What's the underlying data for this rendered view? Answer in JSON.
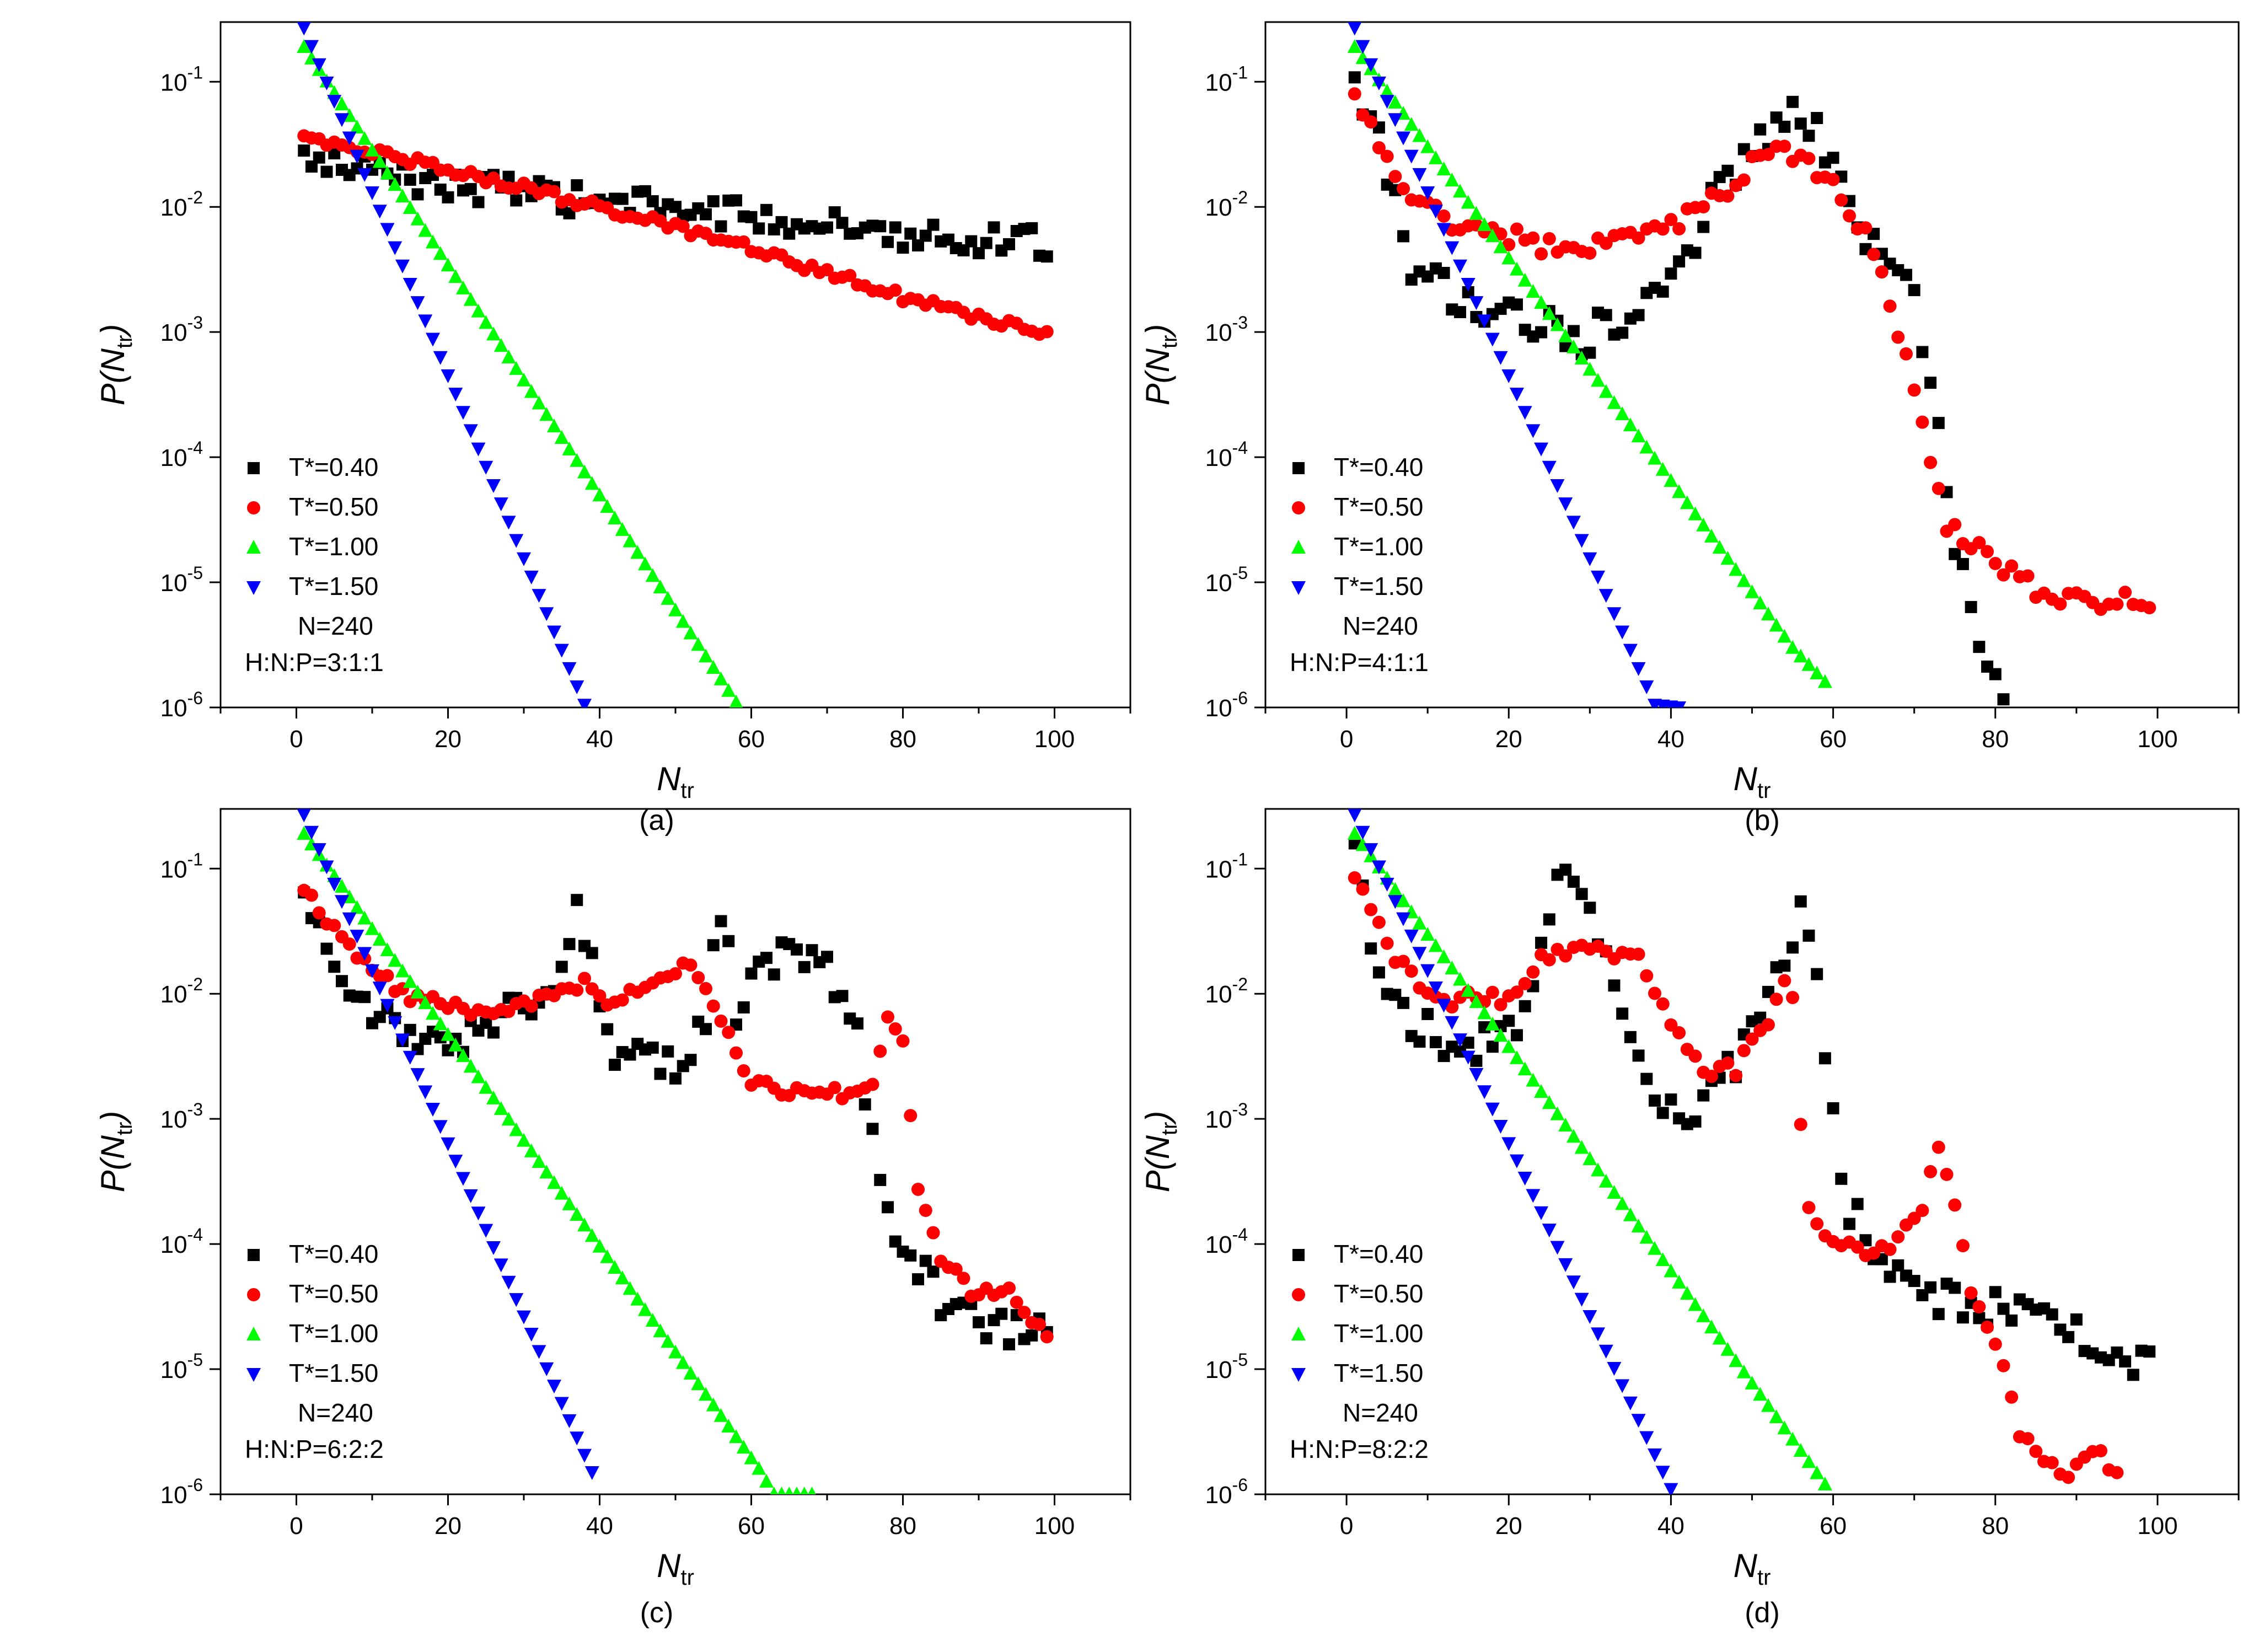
{
  "colors": {
    "t040": "#000000",
    "t050": "#ff0000",
    "t100": "#00ff00",
    "t150": "#0000ff"
  },
  "chart_data": [
    {
      "type": "scatter",
      "panel": "(a)",
      "xlabel": "N",
      "xlabel_sub": "tr",
      "ylabel_pre": "P(N",
      "ylabel_sub": "tr",
      "ylabel_post": ")",
      "xlim": [
        -10,
        110
      ],
      "ylim": [
        1e-06,
        0.3
      ],
      "yscale": "log",
      "xticks": [
        0,
        20,
        40,
        60,
        80,
        100
      ],
      "yticks": [
        {
          "exp": -1,
          "value": 0.1
        },
        {
          "exp": -2,
          "value": 0.01
        },
        {
          "exp": -3,
          "value": 0.001
        },
        {
          "exp": -4,
          "value": 0.0001
        },
        {
          "exp": -5,
          "value": 1e-05
        },
        {
          "exp": -6,
          "value": 1e-06
        }
      ],
      "notes": [
        "N=240",
        "H:N:P=3:1:1"
      ],
      "series": [
        {
          "name": "T*=0.40",
          "color": "#000000",
          "marker": "square",
          "anchors": [
            [
              1,
              0.024
            ],
            [
              20,
              0.015
            ],
            [
              40,
              0.011
            ],
            [
              60,
              0.0085
            ],
            [
              80,
              0.0062
            ],
            [
              99,
              0.0051
            ]
          ],
          "noise": 0.12,
          "xstep": 1
        },
        {
          "name": "T*=0.50",
          "color": "#ff0000",
          "marker": "circle",
          "anchors": [
            [
              1,
              0.037
            ],
            [
              20,
              0.02
            ],
            [
              40,
              0.01
            ],
            [
              60,
              0.0046
            ],
            [
              80,
              0.0019
            ],
            [
              99,
              0.00095
            ]
          ],
          "noise": 0.04,
          "xstep": 1
        },
        {
          "name": "T*=1.00",
          "color": "#00ff00",
          "marker": "triangle-up",
          "anchors": [
            [
              1,
              0.19
            ],
            [
              58,
              1.1e-06
            ]
          ],
          "noise": 0,
          "xstep": 1
        },
        {
          "name": "T*=1.50",
          "color": "#0000ff",
          "marker": "triangle-down",
          "anchors": [
            [
              1,
              0.27
            ],
            [
              38,
              1.05e-06
            ]
          ],
          "noise": 0,
          "xstep": 1
        }
      ]
    },
    {
      "type": "scatter",
      "panel": "(b)",
      "xlabel": "N",
      "xlabel_sub": "tr",
      "ylabel_pre": "P(N",
      "ylabel_sub": "tr",
      "ylabel_post": ")",
      "xlim": [
        -10,
        110
      ],
      "ylim": [
        1e-06,
        0.3
      ],
      "yscale": "log",
      "xticks": [
        0,
        20,
        40,
        60,
        80,
        100
      ],
      "yticks": [
        {
          "exp": -1,
          "value": 0.1
        },
        {
          "exp": -2,
          "value": 0.01
        },
        {
          "exp": -3,
          "value": 0.001
        },
        {
          "exp": -4,
          "value": 0.0001
        },
        {
          "exp": -5,
          "value": 1e-05
        },
        {
          "exp": -6,
          "value": 1e-06
        }
      ],
      "notes": [
        "N=240",
        "H:N:P=4:1:1"
      ],
      "series": [
        {
          "name": "T*=0.40",
          "color": "#000000",
          "marker": "square",
          "anchors": [
            [
              1,
              0.08
            ],
            [
              3,
              0.04
            ],
            [
              5,
              0.02
            ],
            [
              7,
              0.0045
            ],
            [
              12,
              0.0025
            ],
            [
              20,
              0.0015
            ],
            [
              26,
              0.0011
            ],
            [
              30,
              0.001
            ],
            [
              36,
              0.0018
            ],
            [
              42,
              0.0045
            ],
            [
              46,
              0.012
            ],
            [
              50,
              0.03
            ],
            [
              54,
              0.05
            ],
            [
              57,
              0.04
            ],
            [
              62,
              0.015
            ],
            [
              66,
              0.003
            ],
            [
              70,
              0.003
            ],
            [
              72,
              0.00035
            ],
            [
              75,
              2e-05
            ],
            [
              78,
              3e-06
            ],
            [
              81,
              1.2e-06
            ],
            [
              84,
              1e-06
            ]
          ],
          "noise": 0.2,
          "xstep": 1
        },
        {
          "name": "T*=0.50",
          "color": "#ff0000",
          "marker": "circle",
          "anchors": [
            [
              1,
              0.075
            ],
            [
              4,
              0.03
            ],
            [
              8,
              0.012
            ],
            [
              14,
              0.007
            ],
            [
              24,
              0.005
            ],
            [
              32,
              0.005
            ],
            [
              38,
              0.006
            ],
            [
              44,
              0.01
            ],
            [
              48,
              0.016
            ],
            [
              52,
              0.03
            ],
            [
              56,
              0.025
            ],
            [
              60,
              0.014
            ],
            [
              64,
              0.006
            ],
            [
              67,
              0.0018
            ],
            [
              70,
              0.00035
            ],
            [
              72,
              0.0001
            ],
            [
              74,
              3e-05
            ],
            [
              80,
              1.5e-05
            ],
            [
              86,
              8e-06
            ],
            [
              92,
              7e-06
            ],
            [
              99,
              7e-06
            ]
          ],
          "noise": 0.08,
          "xstep": 1
        },
        {
          "name": "T*=1.00",
          "color": "#00ff00",
          "marker": "triangle-up",
          "anchors": [
            [
              1,
              0.19
            ],
            [
              55,
              3e-06
            ],
            [
              59,
              1.6e-06
            ]
          ],
          "noise": 0,
          "xstep": 1
        },
        {
          "name": "T*=1.50",
          "color": "#0000ff",
          "marker": "triangle-down",
          "anchors": [
            [
              1,
              0.27
            ],
            [
              38,
              1.05e-06
            ],
            [
              41,
              1e-06
            ]
          ],
          "noise": 0,
          "xstep": 1
        }
      ]
    },
    {
      "type": "scatter",
      "panel": "(c)",
      "xlabel": "N",
      "xlabel_sub": "tr",
      "ylabel_pre": "P(N",
      "ylabel_sub": "tr",
      "ylabel_post": ")",
      "xlim": [
        -10,
        110
      ],
      "ylim": [
        1e-06,
        0.3
      ],
      "yscale": "log",
      "xticks": [
        0,
        20,
        40,
        60,
        80,
        100
      ],
      "yticks": [
        {
          "exp": -1,
          "value": 0.1
        },
        {
          "exp": -2,
          "value": 0.01
        },
        {
          "exp": -3,
          "value": 0.001
        },
        {
          "exp": -4,
          "value": 0.0001
        },
        {
          "exp": -5,
          "value": 1e-05
        },
        {
          "exp": -6,
          "value": 1e-06
        }
      ],
      "notes": [
        "N=240",
        "H:N:P=6:2:2"
      ],
      "series": [
        {
          "name": "T*=0.40",
          "color": "#000000",
          "marker": "square",
          "anchors": [
            [
              1,
              0.05
            ],
            [
              4,
              0.02
            ],
            [
              8,
              0.009
            ],
            [
              12,
              0.006
            ],
            [
              18,
              0.004
            ],
            [
              24,
              0.005
            ],
            [
              30,
              0.008
            ],
            [
              34,
              0.012
            ],
            [
              37,
              0.04
            ],
            [
              40,
              0.01
            ],
            [
              42,
              0.003
            ],
            [
              50,
              0.0028
            ],
            [
              54,
              0.006
            ],
            [
              56,
              0.05
            ],
            [
              58,
              0.008
            ],
            [
              62,
              0.018
            ],
            [
              66,
              0.025
            ],
            [
              70,
              0.015
            ],
            [
              74,
              0.005
            ],
            [
              76,
              0.0006
            ],
            [
              78,
              0.00015
            ],
            [
              82,
              7e-05
            ],
            [
              86,
              3e-05
            ],
            [
              92,
              2e-05
            ],
            [
              99,
              2.5e-05
            ]
          ],
          "noise": 0.15,
          "xstep": 1
        },
        {
          "name": "T*=0.50",
          "color": "#ff0000",
          "marker": "circle",
          "anchors": [
            [
              1,
              0.075
            ],
            [
              4,
              0.04
            ],
            [
              8,
              0.02
            ],
            [
              14,
              0.01
            ],
            [
              20,
              0.008
            ],
            [
              26,
              0.007
            ],
            [
              32,
              0.009
            ],
            [
              38,
              0.012
            ],
            [
              41,
              0.008
            ],
            [
              46,
              0.011
            ],
            [
              52,
              0.018
            ],
            [
              56,
              0.006
            ],
            [
              60,
              0.002
            ],
            [
              64,
              0.0016
            ],
            [
              68,
              0.0017
            ],
            [
              72,
              0.0016
            ],
            [
              76,
              0.002
            ],
            [
              78,
              0.006
            ],
            [
              80,
              0.004
            ],
            [
              82,
              0.0003
            ],
            [
              85,
              8e-05
            ],
            [
              89,
              4e-05
            ],
            [
              94,
              4.5e-05
            ],
            [
              99,
              1.8e-05
            ]
          ],
          "noise": 0.05,
          "xstep": 1
        },
        {
          "name": "T*=1.00",
          "color": "#00ff00",
          "marker": "triangle-up",
          "anchors": [
            [
              1,
              0.19
            ],
            [
              61,
              1.6e-06
            ],
            [
              63,
              1e-06
            ],
            [
              68,
              1e-06
            ]
          ],
          "noise": 0,
          "xstep": 1
        },
        {
          "name": "T*=1.50",
          "color": "#0000ff",
          "marker": "triangle-down",
          "anchors": [
            [
              1,
              0.27
            ],
            [
              39,
              1.5e-06
            ]
          ],
          "noise": 0,
          "xstep": 1
        }
      ]
    },
    {
      "type": "scatter",
      "panel": "(d)",
      "xlabel": "N",
      "xlabel_sub": "tr",
      "ylabel_pre": "P(N",
      "ylabel_sub": "tr",
      "ylabel_post": ")",
      "xlim": [
        -10,
        110
      ],
      "ylim": [
        1e-06,
        0.3
      ],
      "yscale": "log",
      "xticks": [
        0,
        20,
        40,
        60,
        80,
        100
      ],
      "yticks": [
        {
          "exp": -1,
          "value": 0.1
        },
        {
          "exp": -2,
          "value": 0.01
        },
        {
          "exp": -3,
          "value": 0.001
        },
        {
          "exp": -4,
          "value": 0.0001
        },
        {
          "exp": -5,
          "value": 1e-05
        },
        {
          "exp": -6,
          "value": 1e-06
        }
      ],
      "notes": [
        "N=240",
        "H:N:P=8:2:2"
      ],
      "series": [
        {
          "name": "T*=0.40",
          "color": "#000000",
          "marker": "square",
          "anchors": [
            [
              1,
              0.12
            ],
            [
              3,
              0.03
            ],
            [
              5,
              0.008
            ],
            [
              10,
              0.005
            ],
            [
              16,
              0.0035
            ],
            [
              22,
              0.006
            ],
            [
              25,
              0.04
            ],
            [
              27,
              0.12
            ],
            [
              30,
              0.04
            ],
            [
              33,
              0.01
            ],
            [
              36,
              0.003
            ],
            [
              39,
              0.001
            ],
            [
              44,
              0.0012
            ],
            [
              48,
              0.0028
            ],
            [
              52,
              0.008
            ],
            [
              56,
              0.05
            ],
            [
              58,
              0.02
            ],
            [
              60,
              0.0009
            ],
            [
              62,
              0.0002
            ],
            [
              66,
              6e-05
            ],
            [
              72,
              4e-05
            ],
            [
              78,
              3e-05
            ],
            [
              84,
              3.5e-05
            ],
            [
              90,
              2e-05
            ],
            [
              96,
              1e-05
            ],
            [
              99,
              1.2e-05
            ]
          ],
          "noise": 0.15,
          "xstep": 1
        },
        {
          "name": "T*=0.50",
          "color": "#ff0000",
          "marker": "circle",
          "anchors": [
            [
              1,
              0.09
            ],
            [
              3,
              0.05
            ],
            [
              6,
              0.02
            ],
            [
              10,
              0.009
            ],
            [
              16,
              0.009
            ],
            [
              20,
              0.009
            ],
            [
              24,
              0.02
            ],
            [
              30,
              0.022
            ],
            [
              36,
              0.02
            ],
            [
              40,
              0.006
            ],
            [
              44,
              0.0025
            ],
            [
              48,
              0.0025
            ],
            [
              52,
              0.006
            ],
            [
              54,
              0.012
            ],
            [
              55,
              0.009
            ],
            [
              56,
              0.0009
            ],
            [
              57,
              0.0002
            ],
            [
              60,
              0.0001
            ],
            [
              64,
              9e-05
            ],
            [
              68,
              0.0001
            ],
            [
              71,
              0.0002
            ],
            [
              73,
              0.0006
            ],
            [
              75,
              0.0002
            ],
            [
              77,
              4e-05
            ],
            [
              80,
              1.8e-05
            ],
            [
              83,
              3e-06
            ],
            [
              86,
              2e-06
            ],
            [
              89,
              1.4e-06
            ],
            [
              92,
              2.5e-06
            ],
            [
              95,
              1.4e-06
            ]
          ],
          "noise": 0.06,
          "xstep": 1
        },
        {
          "name": "T*=1.00",
          "color": "#00ff00",
          "marker": "triangle-up",
          "anchors": [
            [
              1,
              0.19
            ],
            [
              59,
              1.2e-06
            ]
          ],
          "noise": 0,
          "xstep": 1
        },
        {
          "name": "T*=1.50",
          "color": "#0000ff",
          "marker": "triangle-down",
          "anchors": [
            [
              1,
              0.27
            ],
            [
              40,
              1.1e-06
            ]
          ],
          "noise": 0,
          "xstep": 1
        }
      ]
    }
  ]
}
